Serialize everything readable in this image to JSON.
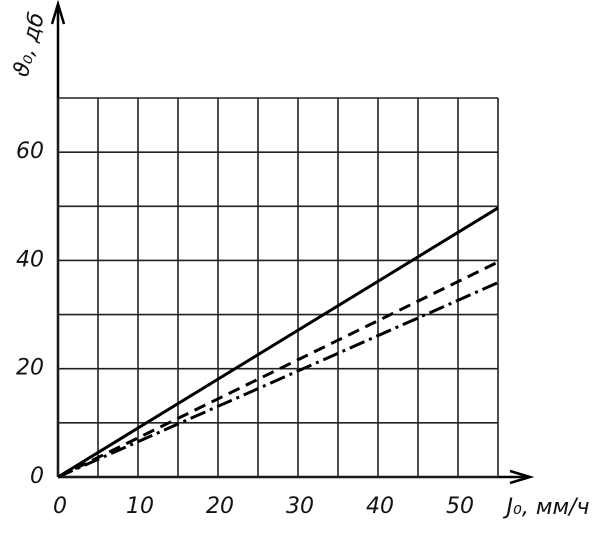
{
  "chart_data": {
    "type": "line",
    "y_label": "ϑ₀, дб",
    "x_label": "J₀, мм/ч",
    "x": [
      0,
      55
    ],
    "series": [
      {
        "color": "#000000",
        "dash": "solid",
        "values": [
          0,
          49.7
        ]
      },
      {
        "color": "#000000",
        "dash": "dashed",
        "values": [
          0,
          39.7
        ]
      },
      {
        "color": "#000000",
        "dash": "dashdot",
        "values": [
          0,
          35.9
        ]
      }
    ],
    "xlim": [
      0,
      55
    ],
    "ylim": [
      0,
      70
    ],
    "xticks": [
      0,
      10,
      20,
      30,
      40,
      50
    ],
    "yticks": [
      0,
      20,
      40,
      60
    ],
    "xminor": [
      5,
      15,
      25,
      35,
      45,
      55
    ],
    "yminor": [
      10,
      30,
      50,
      70
    ],
    "grid": true
  }
}
